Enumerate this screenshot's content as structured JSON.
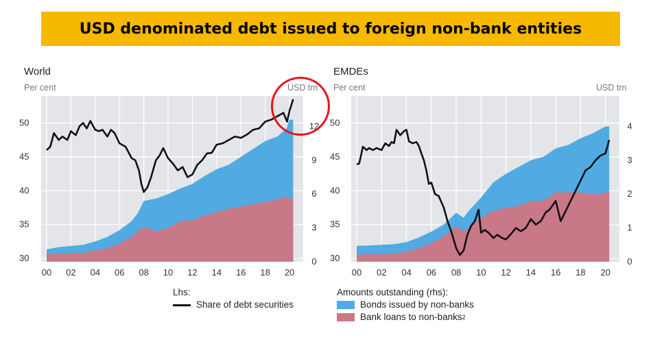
{
  "banner": {
    "title": "USD denominated debt issued to foreign non-bank entities"
  },
  "colors": {
    "banner": "#f7b800",
    "bonds": "#51abe2",
    "loans": "#c97887",
    "line": "#111111",
    "highlight": "#e8141b"
  },
  "panels": {
    "world": {
      "title": "World",
      "lhs_unit": "Per cent",
      "rhs_unit": "USD trn"
    },
    "emdes": {
      "title": "EMDEs",
      "lhs_unit": "Per cent",
      "rhs_unit": "USD trn"
    }
  },
  "legend": {
    "lhs_header": "Lhs:",
    "line_label": "Share of debt securities",
    "rhs_header": "Amounts outstanding (rhs):",
    "bonds_label": "Bonds issued by non-banks",
    "loans_label": "Bank loans to non-banks",
    "loans_note": "2"
  },
  "chart_data": [
    {
      "type": "area",
      "title": "World",
      "ylabel_left": "Per cent",
      "ylabel_right": "USD trn",
      "x_ticks": [
        "00",
        "02",
        "04",
        "06",
        "08",
        "10",
        "12",
        "14",
        "16",
        "18",
        "20"
      ],
      "xlim": [
        2000,
        2021
      ],
      "ylim_left": [
        29.5,
        54
      ],
      "yticks_left": [
        30,
        35,
        40,
        45,
        50
      ],
      "ylim_right": [
        0,
        14.7
      ],
      "yticks_right": [
        0,
        3,
        6,
        9,
        12
      ],
      "x": [
        2000,
        2001,
        2002,
        2003,
        2004,
        2005,
        2006,
        2007,
        2007.5,
        2008,
        2009,
        2010,
        2011,
        2012,
        2013,
        2014,
        2015,
        2016,
        2017,
        2018,
        2019,
        2019.75,
        2020,
        2020.3
      ],
      "series": [
        {
          "name": "Bank loans to non-banks",
          "axis": "rhs",
          "stacked": true,
          "values": [
            0.7,
            0.7,
            0.8,
            0.8,
            1.0,
            1.2,
            1.6,
            2.2,
            2.7,
            3.1,
            2.7,
            3.0,
            3.6,
            3.7,
            4.1,
            4.4,
            4.7,
            4.9,
            5.1,
            5.3,
            5.5,
            5.8,
            5.6,
            5.6
          ]
        },
        {
          "name": "Bonds issued by non-banks",
          "axis": "rhs",
          "stacked": true,
          "values": [
            0.4,
            0.6,
            0.6,
            0.7,
            0.8,
            1.0,
            1.2,
            1.4,
            1.6,
            2.3,
            2.9,
            3.0,
            2.9,
            3.2,
            3.5,
            3.8,
            3.9,
            4.4,
            4.9,
            5.4,
            5.6,
            6.0,
            7.0,
            7.0
          ]
        },
        {
          "name": "Share of debt securities",
          "axis": "lhs",
          "type": "line",
          "x": [
            2000,
            2000.3,
            2000.6,
            2001,
            2001.3,
            2001.7,
            2002,
            2002.4,
            2002.7,
            2003,
            2003.3,
            2003.6,
            2004,
            2004.3,
            2004.6,
            2005,
            2005.3,
            2005.6,
            2006,
            2006.5,
            2007,
            2007.3,
            2007.6,
            2007.8,
            2008,
            2008.3,
            2008.6,
            2009,
            2009.3,
            2009.6,
            2010,
            2010.4,
            2010.8,
            2011.2,
            2011.6,
            2012,
            2012.4,
            2012.8,
            2013.2,
            2013.6,
            2014,
            2014.5,
            2015,
            2015.5,
            2016,
            2016.5,
            2017,
            2017.5,
            2018,
            2018.5,
            2019,
            2019.5,
            2019.8,
            2020,
            2020.3
          ],
          "values": [
            46.0,
            46.5,
            48.5,
            47.5,
            48.0,
            47.5,
            48.8,
            48.2,
            49.5,
            50.0,
            49.2,
            50.3,
            49.0,
            48.8,
            49.0,
            48.0,
            49.0,
            48.5,
            47.0,
            46.5,
            44.8,
            44.5,
            43.0,
            41.0,
            39.8,
            40.5,
            42.0,
            44.5,
            45.2,
            46.3,
            44.8,
            44.0,
            43.0,
            43.5,
            42.0,
            42.4,
            43.8,
            44.5,
            45.5,
            45.6,
            46.8,
            47.0,
            47.5,
            48.0,
            47.8,
            48.3,
            49.0,
            49.2,
            50.2,
            50.5,
            51.0,
            51.5,
            50.2,
            51.8,
            53.5
          ]
        }
      ]
    },
    {
      "type": "area",
      "title": "EMDEs",
      "ylabel_left": "Per cent",
      "ylabel_right": "USD trn",
      "x_ticks": [
        "00",
        "02",
        "04",
        "06",
        "08",
        "10",
        "12",
        "14",
        "16",
        "18",
        "20"
      ],
      "xlim": [
        2000,
        2021
      ],
      "ylim_left": [
        29.5,
        54
      ],
      "yticks_left": [
        30,
        35,
        40,
        45,
        50
      ],
      "ylim_right": [
        0,
        4.9
      ],
      "yticks_right": [
        0,
        1,
        2,
        3,
        4
      ],
      "x": [
        2000,
        2001,
        2002,
        2003,
        2004,
        2005,
        2006,
        2007,
        2007.5,
        2008,
        2008.6,
        2009,
        2010,
        2011,
        2012,
        2013,
        2014,
        2015,
        2016,
        2017,
        2018,
        2019,
        2019.75,
        2020,
        2020.3
      ],
      "series": [
        {
          "name": "Bank loans to non-banks",
          "axis": "rhs",
          "stacked": true,
          "values": [
            0.22,
            0.22,
            0.23,
            0.25,
            0.3,
            0.4,
            0.55,
            0.75,
            0.9,
            1.05,
            0.9,
            1.0,
            1.3,
            1.5,
            1.6,
            1.65,
            1.8,
            1.8,
            2.05,
            2.05,
            2.05,
            2.0,
            2.0,
            2.05,
            2.05
          ]
        },
        {
          "name": "Bonds issued by non-banks",
          "axis": "rhs",
          "stacked": true,
          "values": [
            0.25,
            0.26,
            0.27,
            0.27,
            0.28,
            0.32,
            0.34,
            0.35,
            0.37,
            0.4,
            0.4,
            0.5,
            0.6,
            0.85,
            1.0,
            1.15,
            1.2,
            1.3,
            1.3,
            1.4,
            1.6,
            1.8,
            1.95,
            1.95,
            1.95
          ]
        },
        {
          "name": "Share of debt securities",
          "axis": "lhs",
          "type": "line",
          "x": [
            2000,
            2000.2,
            2000.5,
            2000.8,
            2001,
            2001.3,
            2001.6,
            2002,
            2002.3,
            2002.6,
            2002.8,
            2003,
            2003.2,
            2003.5,
            2003.8,
            2004,
            2004.2,
            2004.5,
            2004.8,
            2005,
            2005.2,
            2005.4,
            2005.6,
            2005.8,
            2006,
            2006.3,
            2006.6,
            2007,
            2007.3,
            2007.6,
            2008,
            2008.3,
            2008.6,
            2008.9,
            2009.2,
            2009.5,
            2009.8,
            2010,
            2010.3,
            2010.6,
            2011,
            2011.3,
            2011.7,
            2012,
            2012.4,
            2012.8,
            2013.2,
            2013.6,
            2014,
            2014.4,
            2014.8,
            2015.2,
            2015.5,
            2016,
            2016.4,
            2016.8,
            2017.2,
            2017.6,
            2018,
            2018.4,
            2018.8,
            2019.2,
            2019.6,
            2020,
            2020.3
          ],
          "values": [
            43.9,
            44.0,
            46.5,
            46.0,
            46.3,
            46.0,
            46.3,
            46.0,
            47.0,
            46.6,
            47.2,
            47.0,
            49.0,
            48.2,
            48.8,
            49.0,
            47.3,
            47.0,
            47.2,
            46.6,
            45.5,
            44.5,
            43.0,
            41.0,
            41.2,
            39.5,
            39.2,
            37.5,
            35.5,
            34.0,
            31.5,
            30.5,
            31.2,
            33.5,
            34.8,
            35.5,
            37.2,
            33.8,
            34.2,
            33.8,
            33.0,
            33.5,
            33.0,
            32.8,
            33.6,
            34.5,
            34.0,
            34.5,
            35.8,
            35.0,
            35.5,
            36.8,
            37.2,
            38.5,
            35.5,
            37.0,
            38.5,
            40.0,
            41.5,
            43.0,
            43.5,
            44.5,
            45.2,
            45.5,
            47.5
          ]
        }
      ]
    }
  ]
}
